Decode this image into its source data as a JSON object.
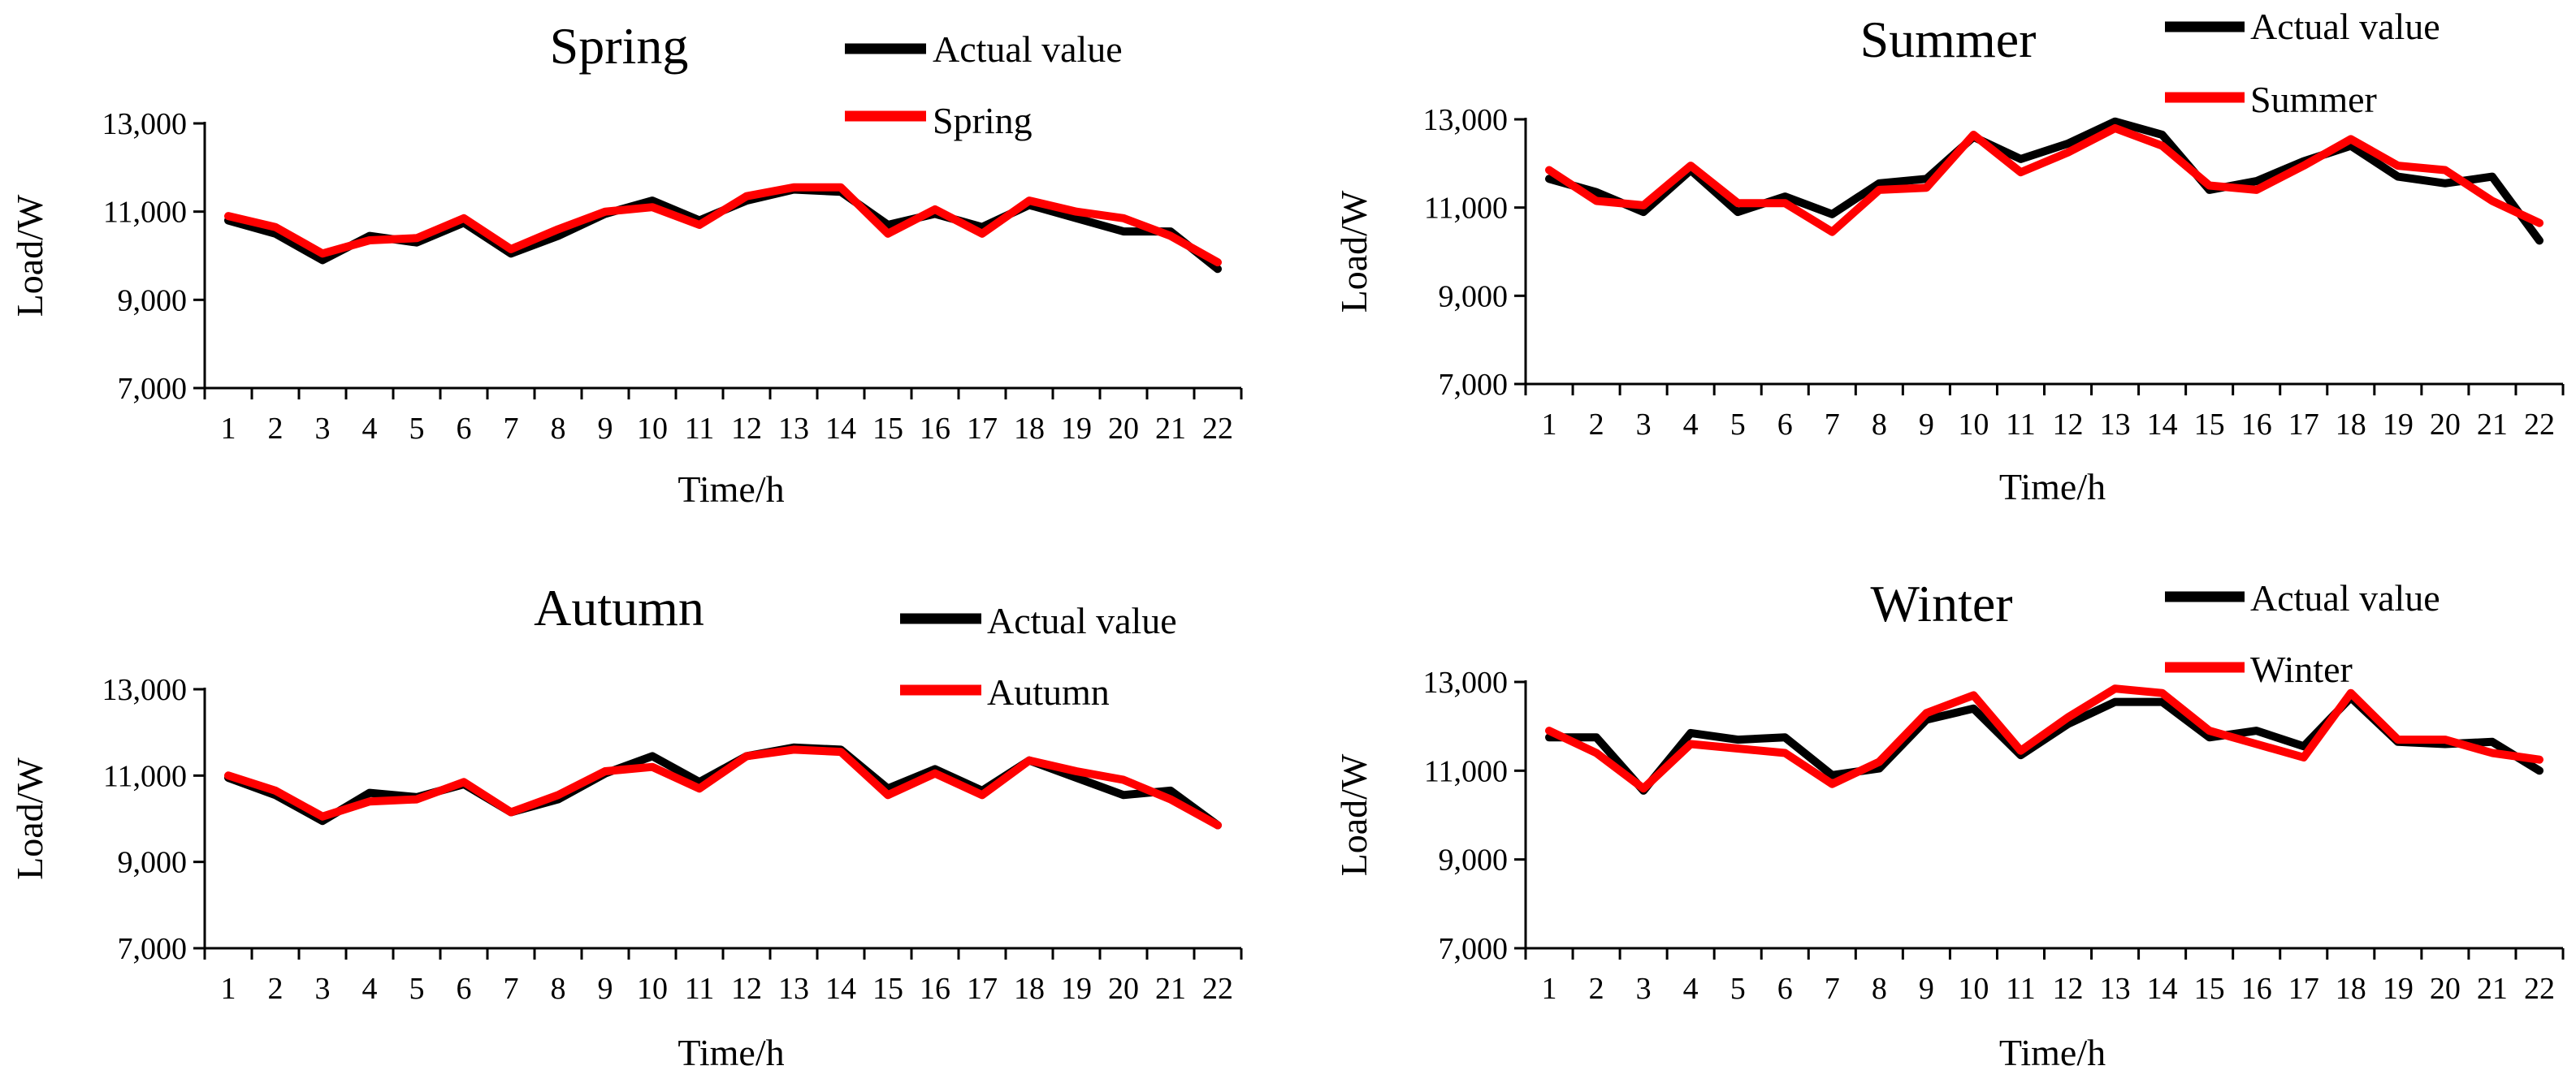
{
  "chart_data": [
    {
      "type": "line",
      "title": "Spring",
      "xlabel": "Time/h",
      "ylabel": "Load/W",
      "ylim": [
        7000,
        13000
      ],
      "yticks": [
        "7,000",
        "9,000",
        "11,000",
        "13,000"
      ],
      "categories": [
        "1",
        "2",
        "3",
        "4",
        "5",
        "6",
        "7",
        "8",
        "9",
        "10",
        "11",
        "12",
        "13",
        "14",
        "15",
        "16",
        "17",
        "18",
        "19",
        "20",
        "21",
        "22"
      ],
      "series": [
        {
          "name": "Actual value",
          "color": "#000000",
          "values": [
            10800,
            10500,
            9900,
            10450,
            10300,
            10750,
            10050,
            10450,
            10950,
            11250,
            10800,
            11250,
            11500,
            11450,
            10700,
            10950,
            10650,
            11150,
            10850,
            10550,
            10550,
            9700
          ]
        },
        {
          "name": "Spring",
          "color": "#ff0000",
          "values": [
            10900,
            10650,
            10050,
            10350,
            10400,
            10850,
            10150,
            10600,
            11000,
            11100,
            10700,
            11350,
            11550,
            11550,
            10500,
            11050,
            10500,
            11250,
            11000,
            10850,
            10450,
            9850
          ]
        }
      ]
    },
    {
      "type": "line",
      "title": "Summer",
      "xlabel": "Time/h",
      "ylabel": "Load/W",
      "ylim": [
        7000,
        13000
      ],
      "yticks": [
        "7,000",
        "9,000",
        "11,000",
        "13,000"
      ],
      "categories": [
        "1",
        "2",
        "3",
        "4",
        "5",
        "6",
        "7",
        "8",
        "9",
        "10",
        "11",
        "12",
        "13",
        "14",
        "15",
        "16",
        "17",
        "18",
        "19",
        "20",
        "21",
        "22"
      ],
      "series": [
        {
          "name": "Actual value",
          "color": "#000000",
          "values": [
            11650,
            11350,
            10900,
            11850,
            10900,
            11250,
            10850,
            11550,
            11650,
            12600,
            12100,
            12450,
            12950,
            12650,
            11400,
            11600,
            12050,
            12400,
            11700,
            11550,
            11700,
            10250
          ]
        },
        {
          "name": "Summer",
          "color": "#ff0000",
          "values": [
            11850,
            11150,
            11050,
            11950,
            11100,
            11100,
            10450,
            11400,
            11450,
            12650,
            11800,
            12250,
            12800,
            12400,
            11500,
            11400,
            11950,
            12550,
            11950,
            11850,
            11150,
            10650
          ]
        }
      ]
    },
    {
      "type": "line",
      "title": "Autumn",
      "xlabel": "Time/h",
      "ylabel": "Load/W",
      "ylim": [
        7000,
        13000
      ],
      "yticks": [
        "7,000",
        "9,000",
        "11,000",
        "13,000"
      ],
      "categories": [
        "1",
        "2",
        "3",
        "4",
        "5",
        "6",
        "7",
        "8",
        "9",
        "10",
        "11",
        "12",
        "13",
        "14",
        "15",
        "16",
        "17",
        "18",
        "19",
        "20",
        "21",
        "22"
      ],
      "series": [
        {
          "name": "Actual value",
          "color": "#000000",
          "values": [
            10950,
            10550,
            9950,
            10600,
            10500,
            10800,
            10150,
            10450,
            11050,
            11450,
            10850,
            11450,
            11650,
            11600,
            10700,
            11150,
            10650,
            11350,
            10950,
            10550,
            10650,
            9850
          ]
        },
        {
          "name": "Autumn",
          "color": "#ff0000",
          "values": [
            11000,
            10650,
            10050,
            10400,
            10450,
            10850,
            10150,
            10550,
            11100,
            11200,
            10700,
            11450,
            11600,
            11550,
            10550,
            11050,
            10550,
            11350,
            11100,
            10900,
            10450,
            9850
          ]
        }
      ]
    },
    {
      "type": "line",
      "title": "Winter",
      "xlabel": "Time/h",
      "ylabel": "Load/W",
      "ylim": [
        7000,
        13000
      ],
      "yticks": [
        "7,000",
        "9,000",
        "11,000",
        "13,000"
      ],
      "categories": [
        "1",
        "2",
        "3",
        "4",
        "5",
        "6",
        "7",
        "8",
        "9",
        "10",
        "11",
        "12",
        "13",
        "14",
        "15",
        "16",
        "17",
        "18",
        "19",
        "20",
        "21",
        "22"
      ],
      "series": [
        {
          "name": "Actual value",
          "color": "#000000",
          "values": [
            11750,
            11750,
            10550,
            11850,
            11700,
            11750,
            10900,
            11050,
            12150,
            12400,
            11350,
            12050,
            12550,
            12550,
            11750,
            11900,
            11550,
            12650,
            11650,
            11600,
            11650,
            11000
          ]
        },
        {
          "name": "Winter",
          "color": "#ff0000",
          "values": [
            11900,
            11400,
            10600,
            11600,
            11500,
            11400,
            10700,
            11200,
            12300,
            12700,
            11450,
            12200,
            12850,
            12750,
            11900,
            11600,
            11300,
            12750,
            11700,
            11700,
            11400,
            11250
          ]
        }
      ]
    }
  ]
}
